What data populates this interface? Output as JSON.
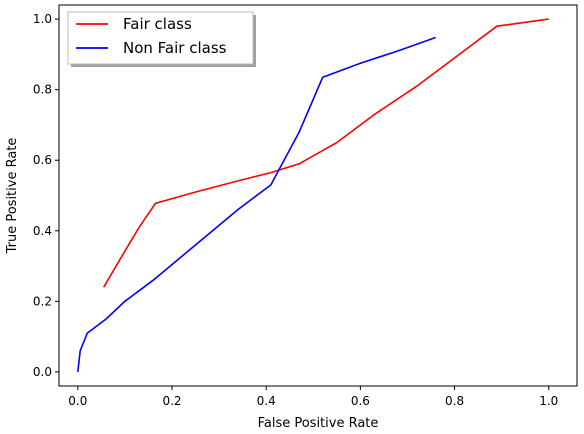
{
  "chart_data": {
    "type": "line",
    "title": "",
    "xlabel": "False Positive Rate",
    "ylabel": "True Positive Rate",
    "xlim": [
      -0.04,
      1.06
    ],
    "ylim": [
      -0.04,
      1.04
    ],
    "xticks": [
      "0.0",
      "0.2",
      "0.4",
      "0.6",
      "0.8",
      "1.0"
    ],
    "yticks": [
      "0.0",
      "0.2",
      "0.4",
      "0.6",
      "0.8",
      "1.0"
    ],
    "grid": false,
    "legend_position": "top-left",
    "series": [
      {
        "name": "Fair class",
        "color": "#ff0000",
        "points": [
          [
            0.055,
            0.24
          ],
          [
            0.09,
            0.32
          ],
          [
            0.13,
            0.41
          ],
          [
            0.165,
            0.478
          ],
          [
            0.25,
            0.51
          ],
          [
            0.33,
            0.538
          ],
          [
            0.41,
            0.565
          ],
          [
            0.47,
            0.59
          ],
          [
            0.55,
            0.65
          ],
          [
            0.63,
            0.73
          ],
          [
            0.72,
            0.81
          ],
          [
            0.8,
            0.89
          ],
          [
            0.89,
            0.98
          ],
          [
            1.0,
            1.0
          ]
        ]
      },
      {
        "name": "Non Fair class",
        "color": "#0000ff",
        "points": [
          [
            0.0,
            0.0
          ],
          [
            0.005,
            0.06
          ],
          [
            0.02,
            0.11
          ],
          [
            0.06,
            0.15
          ],
          [
            0.1,
            0.2
          ],
          [
            0.16,
            0.26
          ],
          [
            0.25,
            0.36
          ],
          [
            0.34,
            0.46
          ],
          [
            0.41,
            0.53
          ],
          [
            0.43,
            0.58
          ],
          [
            0.47,
            0.68
          ],
          [
            0.52,
            0.835
          ],
          [
            0.6,
            0.875
          ],
          [
            0.68,
            0.91
          ],
          [
            0.76,
            0.948
          ]
        ]
      }
    ]
  }
}
